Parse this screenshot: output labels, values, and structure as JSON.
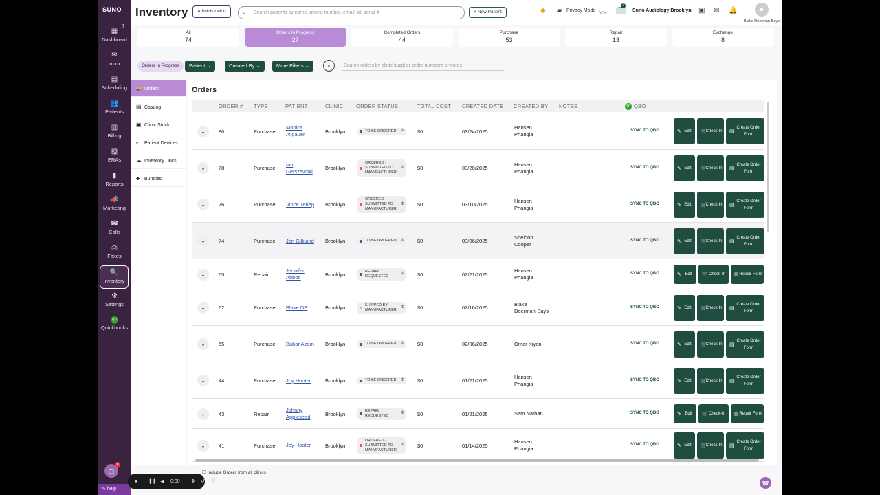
{
  "brand": "SUNO",
  "rail": [
    {
      "label": "Dashboard",
      "icon": "dashboard-icon",
      "glyph": "▦",
      "badge": "7"
    },
    {
      "label": "Inbox",
      "icon": "inbox-icon",
      "glyph": "✉"
    },
    {
      "label": "Scheduling",
      "icon": "calendar-icon",
      "glyph": "▤"
    },
    {
      "label": "Patients",
      "icon": "patients-icon",
      "glyph": "👥"
    },
    {
      "label": "Billing",
      "icon": "billing-icon",
      "glyph": "▥"
    },
    {
      "label": "ERAs",
      "icon": "eras-icon",
      "glyph": "▨"
    },
    {
      "label": "Reports",
      "icon": "reports-icon",
      "glyph": "▮"
    },
    {
      "label": "Marketing",
      "icon": "marketing-icon",
      "glyph": "📣"
    },
    {
      "label": "Calls",
      "icon": "phone-icon",
      "glyph": "☎"
    },
    {
      "label": "Faxes",
      "icon": "fax-icon",
      "glyph": "⎙"
    },
    {
      "label": "Inventory",
      "icon": "inventory-icon",
      "glyph": "🔍"
    },
    {
      "label": "Settings",
      "icon": "gear-icon",
      "glyph": "⚙"
    },
    {
      "label": "Quickbooks",
      "icon": "quickbooks-icon",
      "glyph": "qb"
    }
  ],
  "help_label": "help",
  "chat_badge": "8",
  "header": {
    "title": "Inventory",
    "admin_label": "Administration",
    "search_placeholder": "Search patients by name, phone number, email, id, serial #",
    "new_patient_label": "+ New Patient",
    "privacy_label": "Privacy Mode",
    "notif_badge": "7",
    "clinic_label": "Suno Audiology Brooklyn",
    "user_name": "Blake Doerman-Bays"
  },
  "tabs": [
    {
      "label": "All",
      "count": "74"
    },
    {
      "label": "Orders In Progress",
      "count": "27"
    },
    {
      "label": "Completed Orders",
      "count": "44"
    },
    {
      "label": "Purchase",
      "count": "53"
    },
    {
      "label": "Repair",
      "count": "13"
    },
    {
      "label": "Exchange",
      "count": "8"
    }
  ],
  "filters": {
    "pill": "Orders In Progress",
    "patient": "Patient",
    "created_by": "Created By",
    "more": "More Filters",
    "search_placeholder": "Search orders by clinic/supplier order numbers or notes"
  },
  "sidenav": [
    {
      "label": "Orders",
      "icon": "truck-icon",
      "glyph": "🚚"
    },
    {
      "label": "Catalog",
      "icon": "catalog-icon",
      "glyph": "▤"
    },
    {
      "label": "Clinic Stock",
      "icon": "stock-icon",
      "glyph": "▣"
    },
    {
      "label": "Patient Devices",
      "icon": "device-icon",
      "glyph": "▪"
    },
    {
      "label": "Inventory Docs",
      "icon": "cloud-icon",
      "glyph": "☁"
    },
    {
      "label": "Bundles",
      "icon": "bundles-icon",
      "glyph": "♣"
    }
  ],
  "orders_title": "Orders",
  "columns": [
    "ORDER #",
    "TYPE",
    "PATIENT",
    "CLINIC",
    "ORDER STATUS",
    "TOTAL COST",
    "CREATED DATE",
    "CREATED BY",
    "NOTES",
    "QBO"
  ],
  "sync_label": "SYNC TO QBO",
  "rows": [
    {
      "order": "80",
      "type": "Purchase",
      "patient": [
        "Monica",
        "Allgauer"
      ],
      "clinic": "Brooklyn",
      "status": [
        "TO BE ORDERED"
      ],
      "status_color": "#555b75",
      "cost": "$0",
      "date": "03/24/2025",
      "created_by": [
        "Hansen",
        "Phangia"
      ],
      "actions": [
        "Edit",
        "Check-In",
        "Create Order Form"
      ]
    },
    {
      "order": "78",
      "type": "Purchase",
      "patient": [
        "Ian",
        "Gerszewski"
      ],
      "clinic": "Brooklyn",
      "status": [
        "ORDERED -",
        "SUBMITTED TO",
        "MANUFACTURER"
      ],
      "status_color": "#e05a5a",
      "cost": "$0",
      "date": "03/20/2025",
      "created_by": [
        "Hansen",
        "Phangia"
      ],
      "actions": [
        "Edit",
        "Check-In",
        "Create Order Form"
      ]
    },
    {
      "order": "76",
      "type": "Purchase",
      "patient": [
        "Vince Teriep"
      ],
      "clinic": "Brooklyn",
      "status": [
        "ORDERED -",
        "SUBMITTED TO",
        "MANUFACTURER"
      ],
      "status_color": "#e05a5a",
      "cost": "$0",
      "date": "03/10/2025",
      "created_by": [
        "Hansen",
        "Phangia"
      ],
      "actions": [
        "Edit",
        "Check-In",
        "Create Order Form"
      ]
    },
    {
      "order": "74",
      "type": "Purchase",
      "patient": [
        "Jen Gilliland"
      ],
      "clinic": "Brooklyn",
      "status": [
        "TO BE ORDERED"
      ],
      "status_color": "#555b75",
      "cost": "$0",
      "date": "03/06/2025",
      "created_by": [
        "Sheldon",
        "Cooper"
      ],
      "actions": [
        "Edit",
        "Check-In",
        "Create Order Form"
      ]
    },
    {
      "order": "65",
      "type": "Repair",
      "patient": [
        "Jennifer",
        "Abbott"
      ],
      "clinic": "Brooklyn",
      "status": [
        "REPAIR",
        "REQUESTED"
      ],
      "status_color": "#555b75",
      "cost": "$0",
      "date": "02/21/2025",
      "created_by": [
        "Hansen",
        "Phangia"
      ],
      "actions": [
        "Edit",
        "Check-In",
        "Repair Form"
      ]
    },
    {
      "order": "62",
      "type": "Purchase",
      "patient": [
        "Blake DB"
      ],
      "clinic": "Brooklyn",
      "status": [
        "SHIPPED BY",
        "MANUFACTURER"
      ],
      "status_color": "#f0c23a",
      "cost": "$0",
      "date": "02/16/2025",
      "created_by": [
        "Blake",
        "Doerman-Bays"
      ],
      "actions": [
        "Edit",
        "Check-In",
        "Create Order Form"
      ]
    },
    {
      "order": "55",
      "type": "Purchase",
      "patient": [
        "Babar Azam"
      ],
      "clinic": "Brooklyn",
      "status": [
        "TO BE ORDERED"
      ],
      "status_color": "#555b75",
      "cost": "$0",
      "date": "02/06/2025",
      "created_by": [
        "Omar Kiyani"
      ],
      "actions": [
        "Edit",
        "Check-In",
        "Create Order Form"
      ]
    },
    {
      "order": "44",
      "type": "Purchase",
      "patient": [
        "Joy Hooter"
      ],
      "clinic": "Brooklyn",
      "status": [
        "TO BE ORDERED"
      ],
      "status_color": "#555b75",
      "cost": "$0",
      "date": "01/21/2025",
      "created_by": [
        "Hansen",
        "Phangia"
      ],
      "actions": [
        "Edit",
        "Check-In",
        "Create Order Form"
      ]
    },
    {
      "order": "43",
      "type": "Repair",
      "patient": [
        "Johnny",
        "Appleseed"
      ],
      "clinic": "Brooklyn",
      "status": [
        "REPAIR",
        "REQUESTED"
      ],
      "status_color": "#555b75",
      "cost": "$0",
      "date": "01/21/2025",
      "created_by": [
        "Sam Nathan"
      ],
      "actions": [
        "Edit",
        "Check-In",
        "Repair Form"
      ]
    },
    {
      "order": "41",
      "type": "Purchase",
      "patient": [
        "Joy Hooter"
      ],
      "clinic": "Brooklyn",
      "status": [
        "ORDERED -",
        "SUBMITTED TO",
        "MANUFACTURER"
      ],
      "status_color": "#e05a5a",
      "cost": "$0",
      "date": "01/14/2025",
      "created_by": [
        "Hansen",
        "Phangia"
      ],
      "actions": [
        "Edit",
        "Check-In",
        "Create Order Form"
      ]
    }
  ],
  "include_label": "Include Orders from all clinics",
  "recorder_time": "0:00"
}
